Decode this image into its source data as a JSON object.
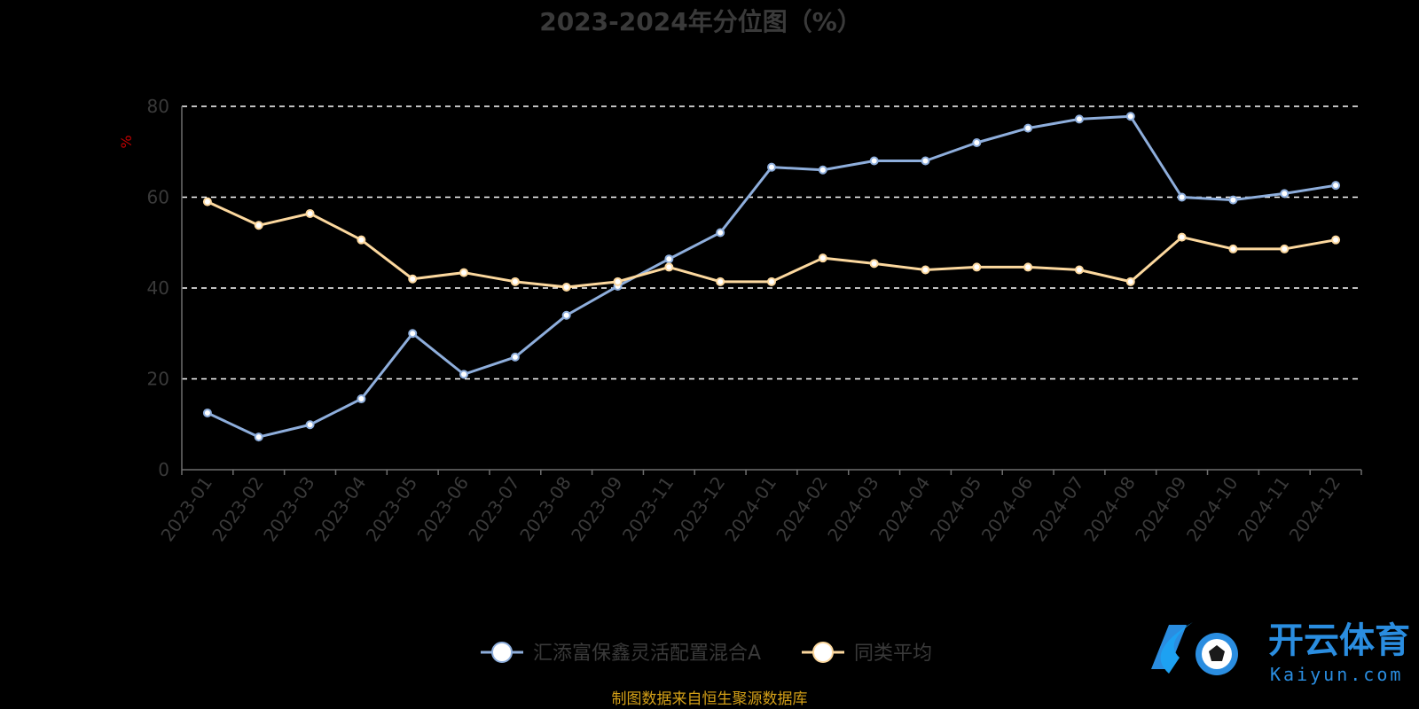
{
  "chart_data": {
    "type": "line",
    "title": "2023-2024年分位图（%）",
    "ylabel": "%",
    "ylim": [
      0,
      80
    ],
    "yticks": [
      0,
      20,
      40,
      60,
      80
    ],
    "grid": true,
    "legend_position": "bottom-center",
    "categories": [
      "2023-01",
      "2023-02",
      "2023-03",
      "2023-04",
      "2023-05",
      "2023-06",
      "2023-07",
      "2023-08",
      "2023-09",
      "2023-11",
      "2023-12",
      "2024-01",
      "2024-02",
      "2024-03",
      "2024-04",
      "2024-05",
      "2024-06",
      "2024-07",
      "2024-08",
      "2024-09",
      "2024-10",
      "2024-11",
      "2024-12"
    ],
    "series": [
      {
        "name": "汇添富保鑫灵活配置混合A",
        "color": "#8eaedc",
        "values": [
          12.5,
          7.2,
          9.9,
          15.6,
          30.0,
          21.0,
          24.8,
          34.0,
          40.4,
          46.4,
          52.2,
          66.6,
          66.0,
          68.0,
          68.0,
          72.0,
          75.2,
          77.2,
          77.8,
          60.0,
          59.4,
          60.8,
          62.6
        ]
      },
      {
        "name": "同类平均",
        "color": "#fcd89e",
        "values": [
          59.0,
          53.8,
          56.4,
          50.6,
          42.0,
          43.4,
          41.4,
          40.2,
          41.4,
          44.6,
          41.4,
          41.4,
          46.6,
          45.4,
          44.0,
          44.6,
          44.6,
          44.0,
          41.4,
          51.2,
          48.6,
          48.6,
          50.6
        ]
      }
    ]
  },
  "source_note": "制图数据来自恒生聚源数据库",
  "watermark": {
    "name_cn": "开云体育",
    "name_en": "Kaiyun.com"
  }
}
